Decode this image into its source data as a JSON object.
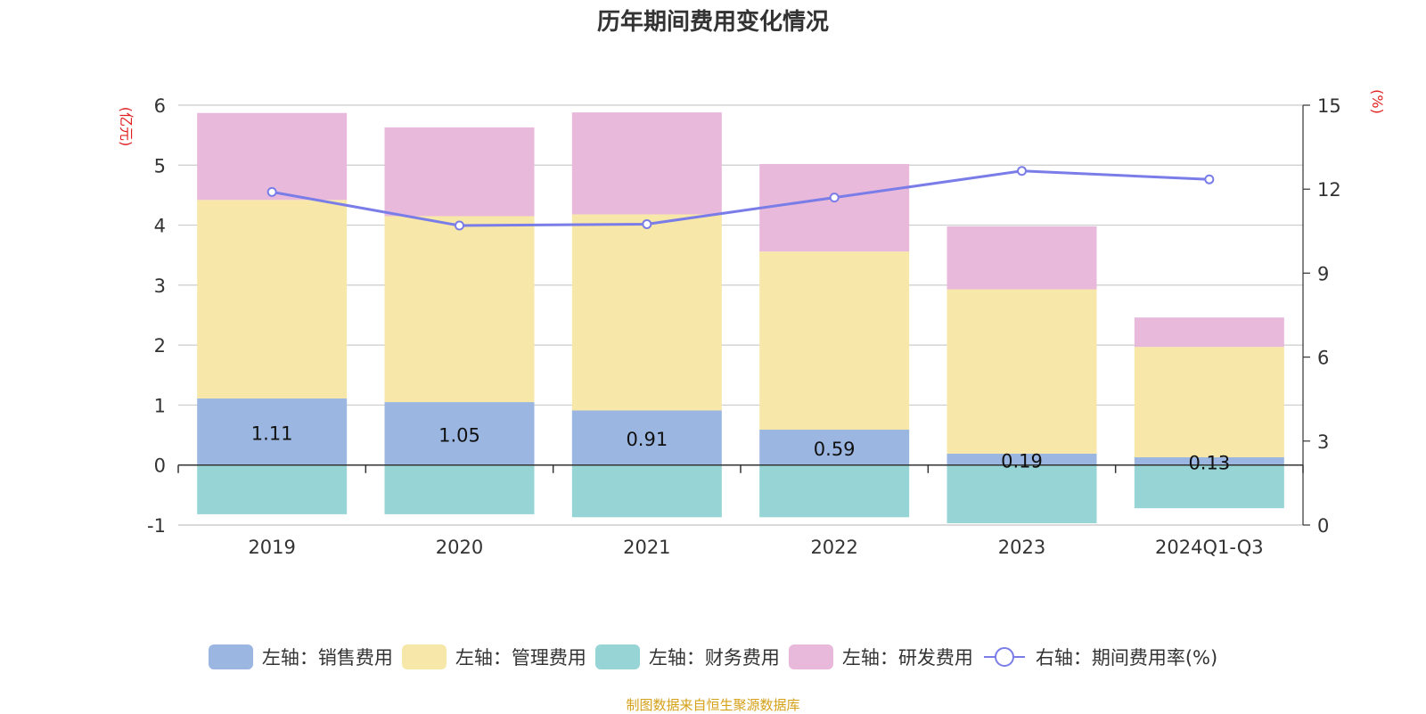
{
  "chart_data": {
    "type": "bar",
    "title": "历年期间费用变化情况",
    "categories": [
      "2019",
      "2020",
      "2021",
      "2022",
      "2023",
      "2024Q1-Q3"
    ],
    "left_axis": {
      "unit_label": "(亿元)",
      "ylim": [
        -1,
        6
      ],
      "ticks": [
        "-1",
        "0",
        "1",
        "2",
        "3",
        "4",
        "5",
        "6"
      ]
    },
    "right_axis": {
      "unit_label": "(%)",
      "ylim": [
        0,
        15
      ],
      "ticks": [
        "0",
        "3",
        "6",
        "9",
        "12",
        "15"
      ]
    },
    "series": [
      {
        "name": "左轴：销售费用",
        "kind": "bar",
        "color": "#9bb7e1",
        "values": [
          1.11,
          1.05,
          0.91,
          0.59,
          0.19,
          0.13
        ],
        "labels": [
          "1.11",
          "1.05",
          "0.91",
          "0.59",
          "0.19",
          "0.13"
        ]
      },
      {
        "name": "左轴：管理费用",
        "kind": "bar",
        "color": "#f7e7a8",
        "values": [
          3.31,
          3.1,
          3.27,
          2.97,
          2.74,
          1.84
        ]
      },
      {
        "name": "左轴：财务费用",
        "kind": "bar",
        "color": "#97d4d5",
        "values": [
          -0.82,
          -0.82,
          -0.87,
          -0.87,
          -0.97,
          -0.72
        ]
      },
      {
        "name": "左轴：研发费用",
        "kind": "bar",
        "color": "#e8b9da",
        "values": [
          1.45,
          1.48,
          1.7,
          1.46,
          1.05,
          0.49
        ]
      },
      {
        "name": "右轴：期间费用率(%)",
        "kind": "line",
        "color": "#7a7de8",
        "values": [
          11.9,
          10.7,
          10.75,
          11.7,
          12.65,
          12.35
        ]
      }
    ],
    "grid": true,
    "legend_position": "bottom"
  },
  "source_note": "制图数据来自恒生聚源数据库"
}
